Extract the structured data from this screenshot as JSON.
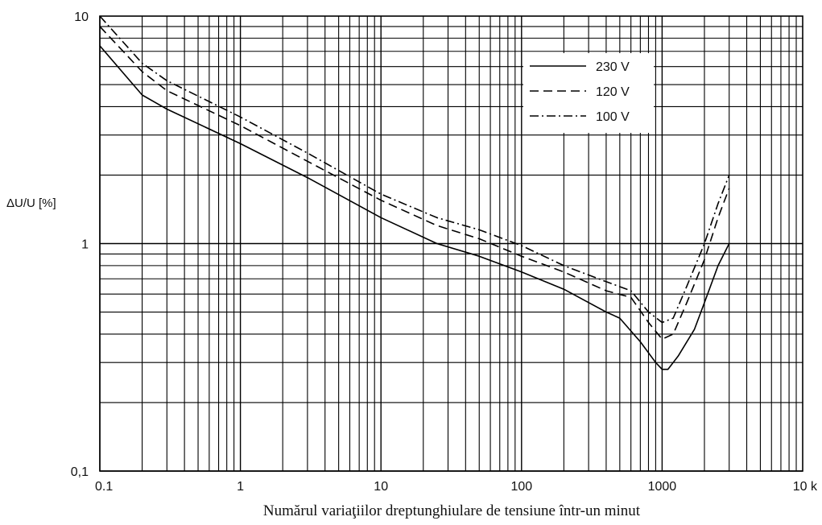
{
  "chart_data": {
    "type": "line",
    "title": "",
    "xlabel": "Numărul variaţiilor dreptunghiulare de tensiune într-un minut",
    "ylabel": "ΔU/U [%]",
    "x_scale": "log",
    "y_scale": "log",
    "xlim": [
      0.1,
      10000
    ],
    "ylim": [
      0.1,
      10
    ],
    "grid": true,
    "legend_position": "top-right",
    "x_ticks": [
      {
        "value": 0.1,
        "label": "0.1"
      },
      {
        "value": 1,
        "label": "1"
      },
      {
        "value": 10,
        "label": "10"
      },
      {
        "value": 100,
        "label": "100"
      },
      {
        "value": 1000,
        "label": "1000"
      },
      {
        "value": 10000,
        "label": "10 k"
      }
    ],
    "y_ticks": [
      {
        "value": 0.1,
        "label": "0,1"
      },
      {
        "value": 1,
        "label": "1"
      },
      {
        "value": 10,
        "label": "10"
      }
    ],
    "series": [
      {
        "name": "230 V",
        "style": "solid",
        "points": [
          [
            0.1,
            7.4
          ],
          [
            0.2,
            4.5
          ],
          [
            0.3,
            3.9
          ],
          [
            1,
            2.75
          ],
          [
            3,
            1.95
          ],
          [
            10,
            1.3
          ],
          [
            25,
            1.0
          ],
          [
            50,
            0.88
          ],
          [
            100,
            0.75
          ],
          [
            200,
            0.63
          ],
          [
            400,
            0.5
          ],
          [
            500,
            0.47
          ],
          [
            700,
            0.37
          ],
          [
            900,
            0.3
          ],
          [
            1000,
            0.28
          ],
          [
            1100,
            0.28
          ],
          [
            1300,
            0.32
          ],
          [
            1700,
            0.42
          ],
          [
            2000,
            0.55
          ],
          [
            2500,
            0.8
          ],
          [
            3000,
            1.0
          ]
        ]
      },
      {
        "name": "120 V",
        "style": "dashed",
        "points": [
          [
            0.1,
            9.0
          ],
          [
            0.2,
            5.7
          ],
          [
            0.3,
            4.7
          ],
          [
            1,
            3.3
          ],
          [
            3,
            2.3
          ],
          [
            10,
            1.55
          ],
          [
            25,
            1.2
          ],
          [
            50,
            1.05
          ],
          [
            100,
            0.88
          ],
          [
            200,
            0.75
          ],
          [
            400,
            0.62
          ],
          [
            600,
            0.58
          ],
          [
            800,
            0.45
          ],
          [
            1000,
            0.38
          ],
          [
            1200,
            0.4
          ],
          [
            1500,
            0.55
          ],
          [
            2000,
            0.85
          ],
          [
            2500,
            1.3
          ],
          [
            3000,
            1.75
          ]
        ]
      },
      {
        "name": "100 V",
        "style": "dashdot",
        "points": [
          [
            0.1,
            10.0
          ],
          [
            0.2,
            6.2
          ],
          [
            0.3,
            5.2
          ],
          [
            1,
            3.6
          ],
          [
            3,
            2.5
          ],
          [
            10,
            1.65
          ],
          [
            25,
            1.3
          ],
          [
            50,
            1.15
          ],
          [
            100,
            0.98
          ],
          [
            200,
            0.8
          ],
          [
            400,
            0.68
          ],
          [
            600,
            0.62
          ],
          [
            800,
            0.5
          ],
          [
            1000,
            0.45
          ],
          [
            1200,
            0.47
          ],
          [
            1500,
            0.65
          ],
          [
            2000,
            1.0
          ],
          [
            2500,
            1.5
          ],
          [
            3000,
            2.0
          ]
        ]
      }
    ]
  }
}
